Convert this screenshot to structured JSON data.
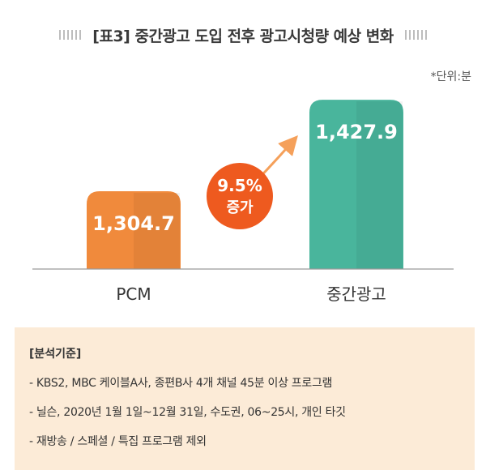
{
  "title": "[표3] 중간광고 도입 전후 광고시청량 예상 변화",
  "unit_label": "*단위:분",
  "chart_data": {
    "type": "bar",
    "title": "[표3] 중간광고 도입 전후 광고시청량 예상 변화",
    "categories": [
      "PCM",
      "중간광고"
    ],
    "values": [
      1304.7,
      1427.9
    ],
    "value_labels": [
      "1,304.7",
      "1,427.9"
    ],
    "ylim": [
      1200,
      1440
    ],
    "grid": false,
    "colors": [
      "#f08a3c",
      "#49b59c"
    ],
    "annotation": {
      "line1": "9.5%",
      "line2": "증가",
      "color": "#ee5a1f"
    }
  },
  "notes": {
    "heading": "[분석기준]",
    "lines": [
      "- KBS2, MBC 케이블A사, 종편B사 4개 채널 45분 이상 프로그램",
      "- 닐슨, 2020년 1월 1일~12월 31일, 수도권, 06~25시, 개인 타깃",
      "- 재방송 / 스페셜 / 특집 프로그램 제외"
    ]
  }
}
